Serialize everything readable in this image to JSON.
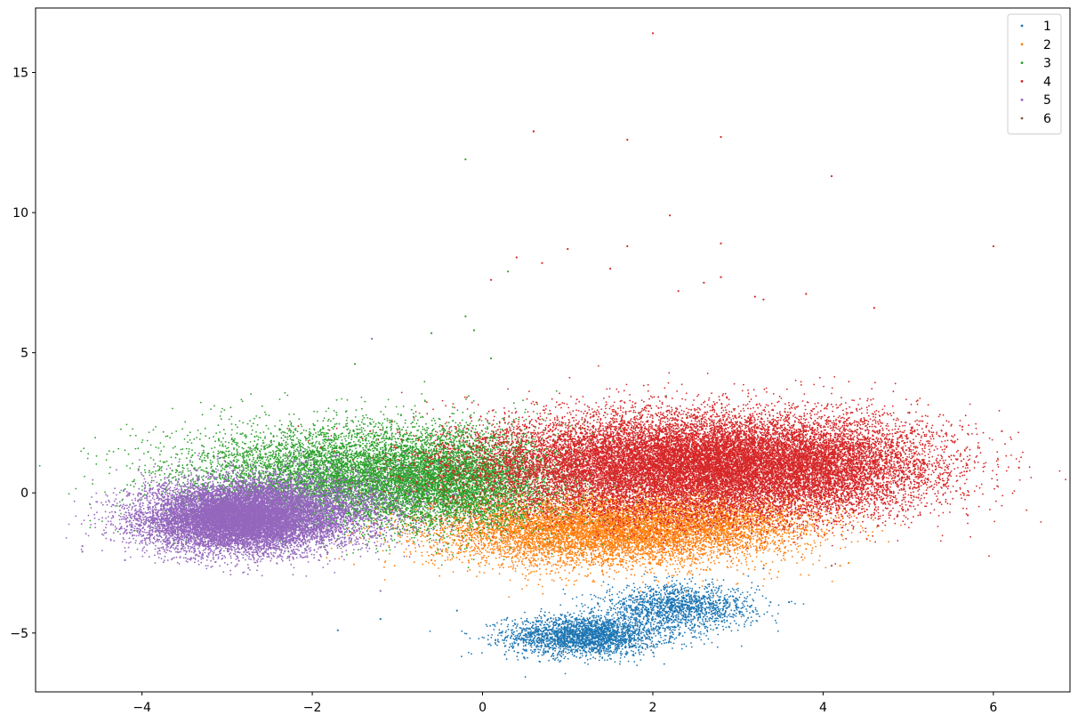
{
  "chart_data": {
    "type": "scatter",
    "title": "",
    "xlabel": "",
    "ylabel": "",
    "xlim": [
      -5.25,
      6.9
    ],
    "ylim": [
      -7.1,
      17.3
    ],
    "grid": false,
    "legend_position": "top-right",
    "x_ticks": [
      -4,
      -2,
      0,
      2,
      4,
      6
    ],
    "y_ticks": [
      -5,
      0,
      5,
      10,
      15
    ],
    "x_tick_labels": [
      "−4",
      "−2",
      "0",
      "2",
      "4",
      "6"
    ],
    "y_tick_labels": [
      "−5",
      "0",
      "5",
      "10",
      "15"
    ],
    "series": [
      {
        "name": "1",
        "color": "#1f77b4",
        "clusters": [
          {
            "cx": 1.2,
            "cy": -5.1,
            "sx": 0.45,
            "sy": 0.35,
            "n": 2600
          },
          {
            "cx": 2.3,
            "cy": -4.1,
            "sx": 0.45,
            "sy": 0.4,
            "n": 1600
          }
        ],
        "outliers": [
          [
            -1.7,
            -4.9
          ],
          [
            -1.2,
            -4.5
          ],
          [
            -0.3,
            -4.2
          ],
          [
            3.6,
            -3.9
          ],
          [
            3.3,
            -2.7
          ],
          [
            0.2,
            -5.0
          ]
        ]
      },
      {
        "name": "2",
        "color": "#ff7f0e",
        "clusters": [
          {
            "cx": 1.4,
            "cy": -1.3,
            "sx": 1.0,
            "sy": 0.65,
            "n": 8000
          },
          {
            "cx": 2.9,
            "cy": -1.0,
            "sx": 0.6,
            "sy": 0.5,
            "n": 1500
          }
        ],
        "outliers": [
          [
            4.2,
            -2.6
          ],
          [
            4.3,
            -2.5
          ],
          [
            3.8,
            -2.0
          ],
          [
            -0.6,
            -2.4
          ]
        ]
      },
      {
        "name": "3",
        "color": "#2ca02c",
        "clusters": [
          {
            "cx": -1.3,
            "cy": 0.6,
            "sx": 1.1,
            "sy": 0.9,
            "n": 9000
          },
          {
            "cx": -0.2,
            "cy": 0.4,
            "sx": 0.5,
            "sy": 0.8,
            "n": 2500
          }
        ],
        "outliers": [
          [
            -0.2,
            11.9
          ],
          [
            0.3,
            7.9
          ],
          [
            -0.2,
            6.3
          ],
          [
            -0.1,
            5.8
          ],
          [
            -1.5,
            4.6
          ],
          [
            0.1,
            4.8
          ],
          [
            -0.6,
            5.7
          ]
        ]
      },
      {
        "name": "4",
        "color": "#d62728",
        "clusters": [
          {
            "cx": 2.3,
            "cy": 1.0,
            "sx": 1.2,
            "sy": 0.9,
            "n": 17000
          },
          {
            "cx": 3.9,
            "cy": 0.9,
            "sx": 0.8,
            "sy": 0.9,
            "n": 5000
          }
        ],
        "outliers": [
          [
            2.0,
            16.4
          ],
          [
            0.6,
            12.9
          ],
          [
            0.6,
            12.9
          ],
          [
            1.7,
            12.6
          ],
          [
            2.8,
            12.7
          ],
          [
            4.1,
            11.3
          ],
          [
            2.2,
            9.9
          ],
          [
            6.0,
            8.8
          ],
          [
            1.7,
            8.8
          ],
          [
            2.8,
            8.9
          ],
          [
            0.4,
            8.4
          ],
          [
            0.7,
            8.2
          ],
          [
            1.0,
            8.7
          ],
          [
            1.5,
            8.0
          ],
          [
            2.8,
            7.7
          ],
          [
            3.2,
            7.0
          ],
          [
            3.8,
            7.1
          ],
          [
            4.6,
            6.6
          ],
          [
            6.3,
            0.9
          ],
          [
            6.1,
            2.2
          ],
          [
            5.7,
            -0.8
          ],
          [
            0.1,
            7.6
          ],
          [
            3.3,
            6.9
          ],
          [
            2.6,
            7.5
          ],
          [
            2.3,
            7.2
          ]
        ]
      },
      {
        "name": "5",
        "color": "#9467bd",
        "clusters": [
          {
            "cx": -2.9,
            "cy": -0.9,
            "sx": 0.55,
            "sy": 0.6,
            "n": 11000
          },
          {
            "cx": -2.2,
            "cy": -0.6,
            "sx": 0.7,
            "sy": 0.7,
            "n": 3000
          }
        ],
        "outliers": [
          [
            -4.7,
            -1.9
          ],
          [
            -4.7,
            -2.1
          ],
          [
            -1.3,
            5.5
          ],
          [
            -4.2,
            -2.4
          ],
          [
            -1.2,
            -3.5
          ]
        ]
      },
      {
        "name": "6",
        "color": "#8c564b",
        "clusters": [],
        "outliers": [
          [
            4.1,
            -2.6
          ]
        ]
      }
    ]
  }
}
